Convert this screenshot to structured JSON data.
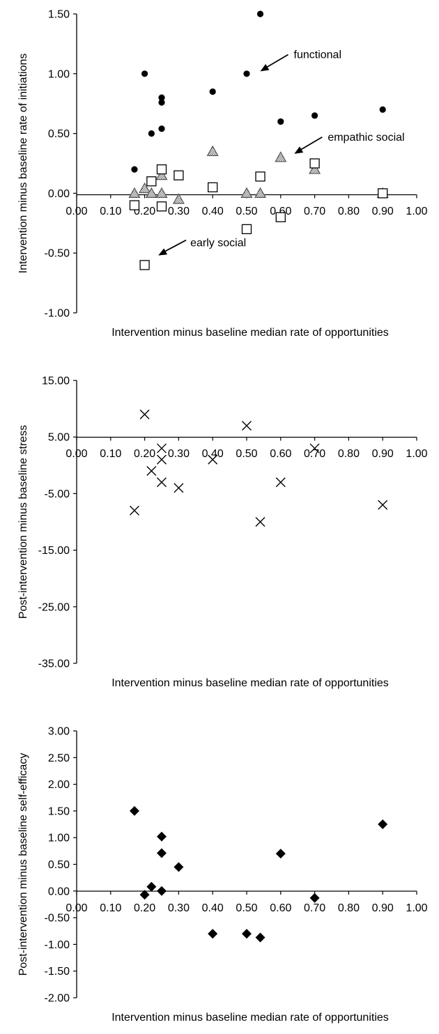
{
  "chart_data": [
    {
      "type": "scatter",
      "title": "",
      "xlabel": "Intervention minus baseline median rate of opportunities",
      "ylabel": "Intervention minus baseline rate of initiations",
      "xlim": [
        0,
        1
      ],
      "ylim": [
        -1,
        1.5
      ],
      "xticks": [
        "0.00",
        "0.10",
        "0.20",
        "0.30",
        "0.40",
        "0.50",
        "0.60",
        "0.70",
        "0.80",
        "0.90",
        "1.00"
      ],
      "yticks": [
        "1.50",
        "1.00",
        "0.50",
        "0.00",
        "-0.50",
        "-1.00"
      ],
      "grid": false,
      "series": [
        {
          "marker": "filled-circle",
          "color": "#000000",
          "points": [
            [
              0.17,
              0.2
            ],
            [
              0.2,
              1.0
            ],
            [
              0.22,
              0.5
            ],
            [
              0.25,
              0.8
            ],
            [
              0.25,
              0.76
            ],
            [
              0.25,
              0.54
            ],
            [
              0.4,
              0.85
            ],
            [
              0.5,
              1.0
            ],
            [
              0.54,
              1.5
            ],
            [
              0.6,
              0.6
            ],
            [
              0.7,
              0.65
            ],
            [
              0.9,
              0.7
            ]
          ]
        },
        {
          "marker": "hatched-triangle",
          "color": "#888888",
          "points": [
            [
              0.17,
              0.0
            ],
            [
              0.2,
              0.04
            ],
            [
              0.22,
              0.0
            ],
            [
              0.25,
              0.0
            ],
            [
              0.25,
              0.15
            ],
            [
              0.3,
              -0.05
            ],
            [
              0.4,
              0.35
            ],
            [
              0.5,
              0.0
            ],
            [
              0.54,
              0.0
            ],
            [
              0.6,
              0.3
            ],
            [
              0.7,
              0.2
            ],
            [
              0.9,
              0.0
            ]
          ]
        },
        {
          "marker": "open-square",
          "color": "#000000",
          "points": [
            [
              0.17,
              -0.1
            ],
            [
              0.2,
              -0.6
            ],
            [
              0.22,
              0.1
            ],
            [
              0.25,
              0.2
            ],
            [
              0.25,
              -0.11
            ],
            [
              0.3,
              0.15
            ],
            [
              0.4,
              0.05
            ],
            [
              0.5,
              -0.3
            ],
            [
              0.54,
              0.14
            ],
            [
              0.6,
              -0.2
            ],
            [
              0.7,
              0.25
            ],
            [
              0.9,
              0.0
            ]
          ]
        }
      ],
      "annotations": [
        {
          "text": "functional",
          "x": 0.54,
          "y": 1.02
        },
        {
          "text": "empathic social",
          "x": 0.64,
          "y": 0.33
        },
        {
          "text": "early social",
          "x": 0.24,
          "y": -0.52
        }
      ]
    },
    {
      "type": "scatter",
      "title": "",
      "xlabel": "Intervention minus baseline median rate of opportunities",
      "ylabel": "Post-intervention minus baseline stress",
      "xlim": [
        0,
        1
      ],
      "ylim": [
        -35,
        15
      ],
      "xticks": [
        "0.00",
        "0.10",
        "0.20",
        "0.30",
        "0.40",
        "0.50",
        "0.60",
        "0.70",
        "0.80",
        "0.90",
        "1.00"
      ],
      "yticks": [
        "15.00",
        "5.00",
        "-5.00",
        "-15.00",
        "-25.00",
        "-35.00"
      ],
      "grid": false,
      "series": [
        {
          "marker": "x",
          "color": "#000000",
          "points": [
            [
              0.17,
              -8
            ],
            [
              0.2,
              9
            ],
            [
              0.22,
              -1
            ],
            [
              0.25,
              3
            ],
            [
              0.25,
              1
            ],
            [
              0.25,
              -3
            ],
            [
              0.3,
              -4
            ],
            [
              0.4,
              1
            ],
            [
              0.5,
              7
            ],
            [
              0.54,
              -10
            ],
            [
              0.6,
              -3
            ],
            [
              0.7,
              3
            ],
            [
              0.9,
              -7
            ]
          ]
        }
      ]
    },
    {
      "type": "scatter",
      "title": "",
      "xlabel": "Intervention minus baseline median rate of opportunities",
      "ylabel": "Post-intervention minus baseline self-efficacy",
      "xlim": [
        0,
        1
      ],
      "ylim": [
        -2,
        3
      ],
      "xticks": [
        "0.00",
        "0.10",
        "0.20",
        "0.30",
        "0.40",
        "0.50",
        "0.60",
        "0.70",
        "0.80",
        "0.90",
        "1.00"
      ],
      "yticks": [
        "3.00",
        "2.50",
        "2.00",
        "1.50",
        "1.00",
        "0.50",
        "0.00",
        "-0.50",
        "-1.00",
        "-1.50",
        "-2.00"
      ],
      "grid": false,
      "series": [
        {
          "marker": "filled-diamond",
          "color": "#000000",
          "points": [
            [
              0.17,
              1.5
            ],
            [
              0.2,
              -0.07
            ],
            [
              0.22,
              0.08
            ],
            [
              0.25,
              1.02
            ],
            [
              0.25,
              0.71
            ],
            [
              0.25,
              0.0
            ],
            [
              0.3,
              0.45
            ],
            [
              0.4,
              -0.8
            ],
            [
              0.5,
              -0.8
            ],
            [
              0.54,
              -0.87
            ],
            [
              0.6,
              0.7
            ],
            [
              0.7,
              -0.13
            ],
            [
              0.9,
              1.25
            ]
          ]
        }
      ]
    }
  ]
}
